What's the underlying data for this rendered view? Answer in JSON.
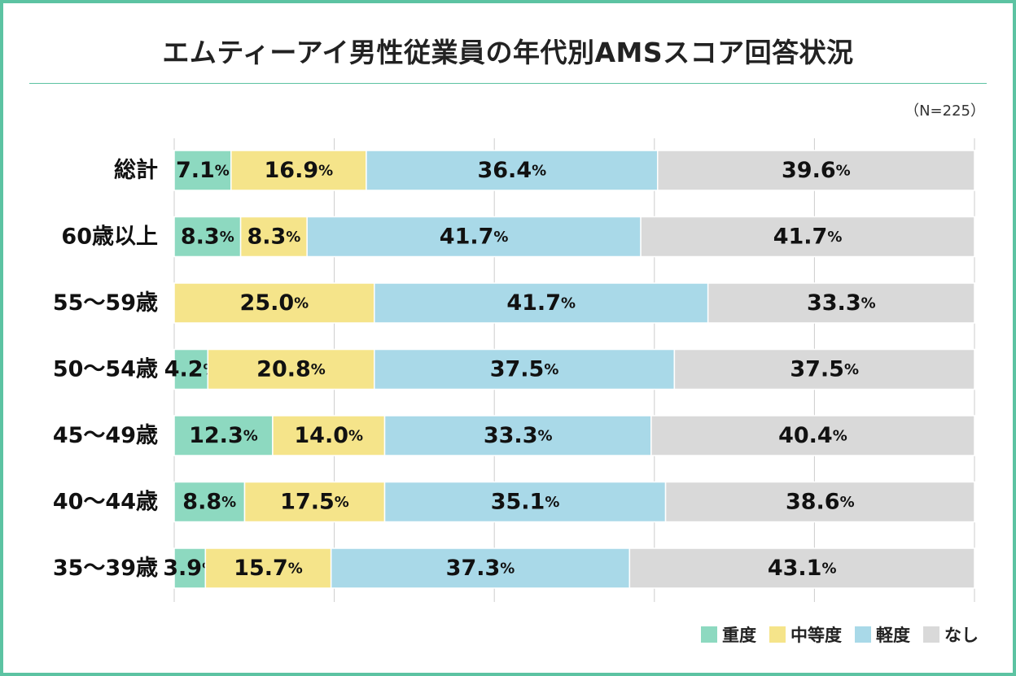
{
  "chart_data": {
    "type": "bar",
    "orientation": "horizontal-stacked-100",
    "title": "エムティーアイ男性従業員の年代別AMSスコア回答状況",
    "sample_label": "（N=225）",
    "unit": "%",
    "categories": [
      "総計",
      "60歳以上",
      "55〜59歳",
      "50〜54歳",
      "45〜49歳",
      "40〜44歳",
      "35〜39歳"
    ],
    "series": [
      {
        "name": "重度",
        "color": "#8dd9c0",
        "values": [
          7.1,
          8.3,
          0,
          4.2,
          12.3,
          8.8,
          3.9
        ]
      },
      {
        "name": "中等度",
        "color": "#f5e48a",
        "values": [
          16.9,
          8.3,
          25.0,
          20.8,
          14.0,
          17.5,
          15.7
        ]
      },
      {
        "name": "軽度",
        "color": "#a9d9e8",
        "values": [
          36.4,
          41.7,
          41.7,
          37.5,
          33.3,
          35.1,
          37.3
        ]
      },
      {
        "name": "なし",
        "color": "#d9d9d9",
        "values": [
          39.6,
          41.7,
          33.3,
          37.5,
          40.4,
          38.6,
          43.1
        ]
      }
    ],
    "xlim": [
      0,
      100
    ],
    "gridlines": [
      0,
      20,
      40,
      60,
      80,
      100
    ],
    "grid_color": "#cccccc",
    "legend_position": "bottom-right"
  }
}
